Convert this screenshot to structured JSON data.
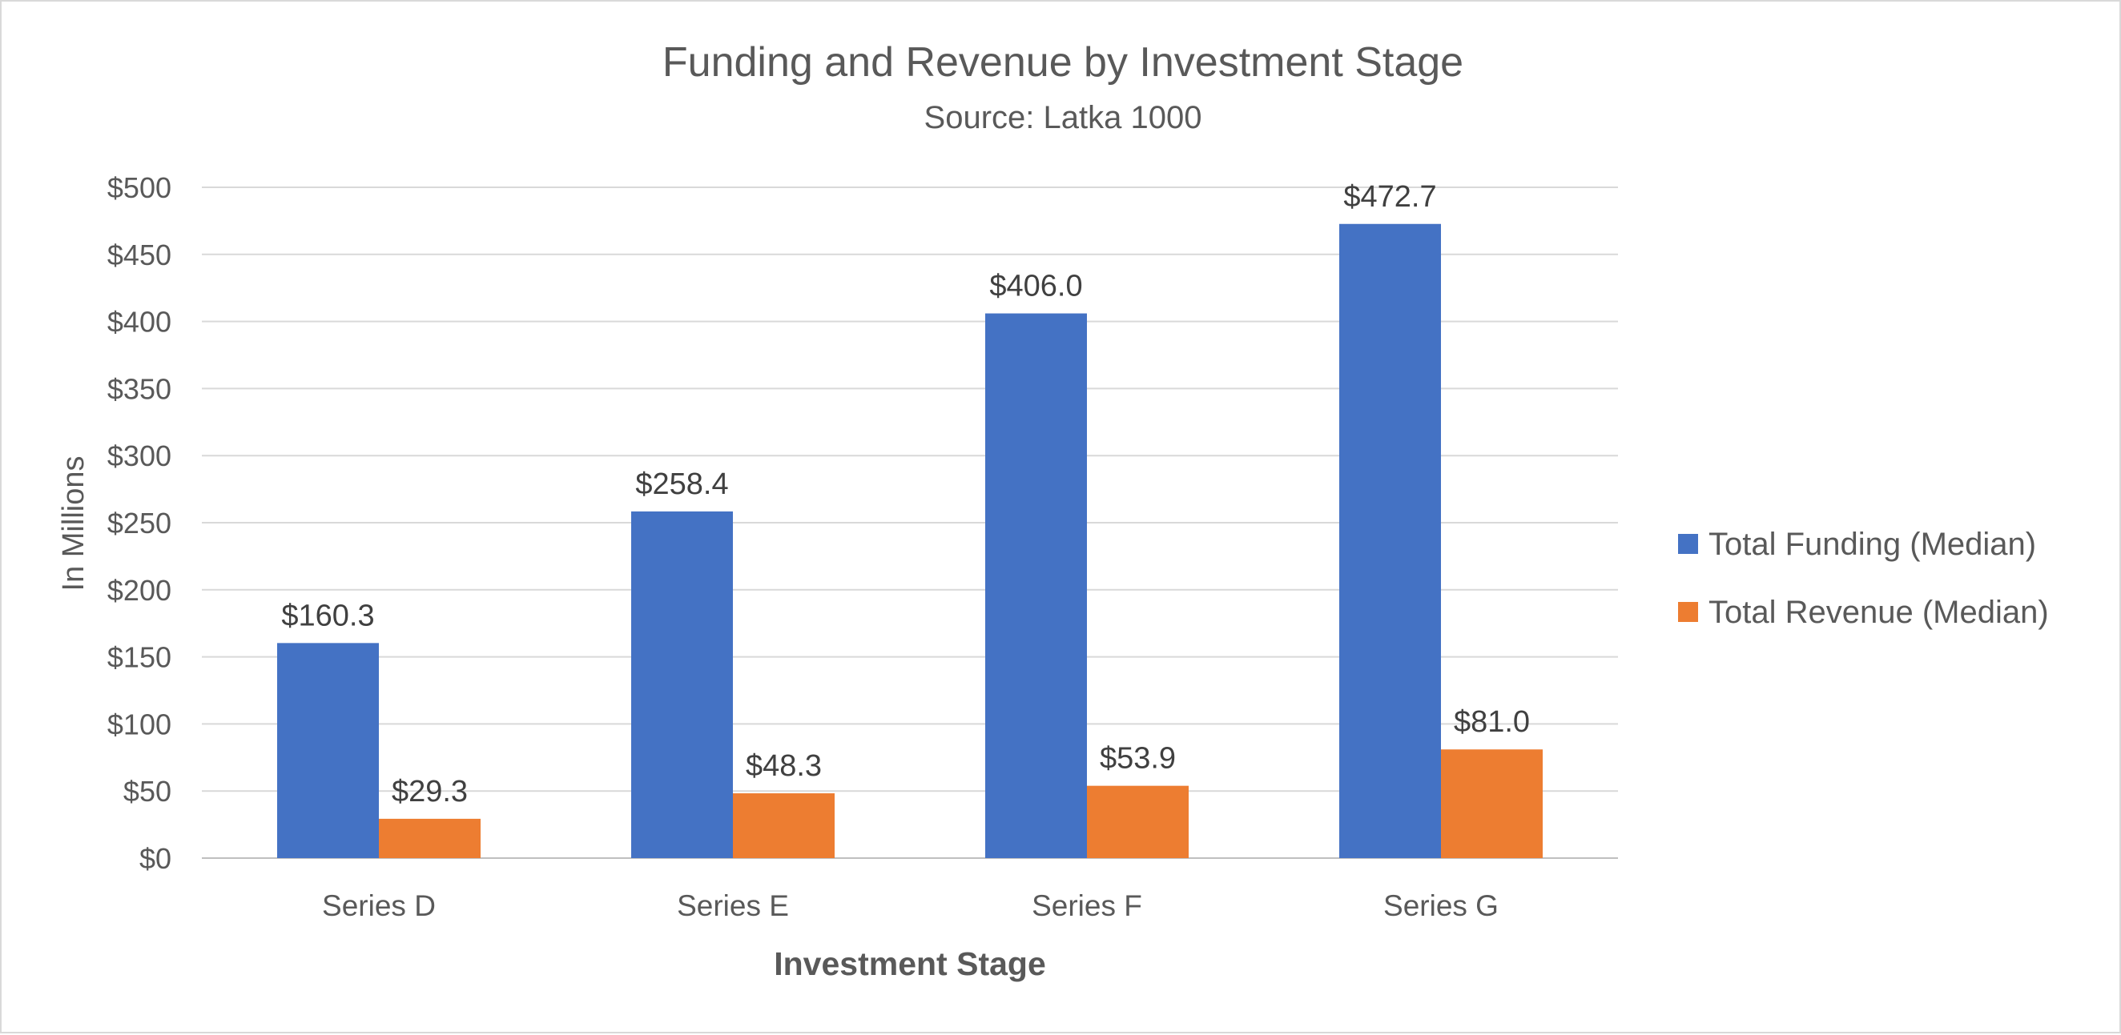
{
  "chart_data": {
    "type": "bar",
    "title": "Funding and Revenue by Investment Stage",
    "subtitle": "Source:  Latka 1000",
    "xlabel": "Investment Stage",
    "ylabel": "In Millions",
    "categories": [
      "Series D",
      "Series E",
      "Series F",
      "Series G"
    ],
    "series": [
      {
        "name": "Total Funding (Median)",
        "color": "#4472C4",
        "values": [
          160.3,
          258.4,
          406.0,
          472.7
        ],
        "labels": [
          "$160.3",
          "$258.4",
          "$406.0",
          "$472.7"
        ]
      },
      {
        "name": "Total Revenue (Median)",
        "color": "#ED7D31",
        "values": [
          29.3,
          48.3,
          53.9,
          81.0
        ],
        "labels": [
          "$29.3",
          "$48.3",
          "$53.9",
          "$81.0"
        ]
      }
    ],
    "ylim": [
      0,
      500
    ],
    "yticks": [
      0,
      50,
      100,
      150,
      200,
      250,
      300,
      350,
      400,
      450,
      500
    ],
    "ytick_labels": [
      "$0",
      "$50",
      "$100",
      "$150",
      "$200",
      "$250",
      "$300",
      "$350",
      "$400",
      "$450",
      "$500"
    ],
    "grid": true,
    "legend_position": "right"
  }
}
